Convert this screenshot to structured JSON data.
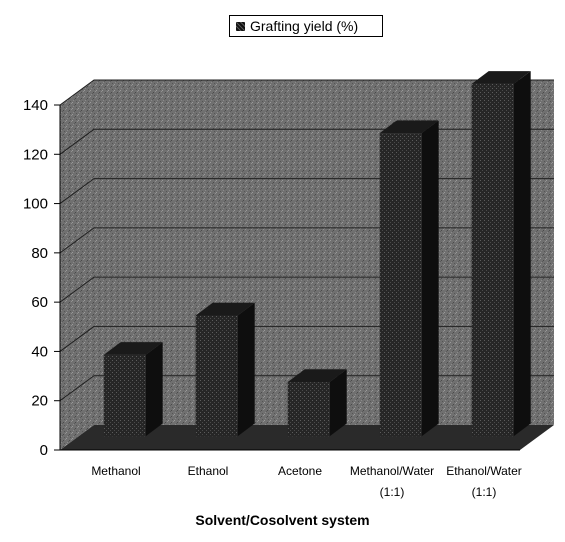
{
  "chart_data": {
    "type": "bar",
    "categories": [
      "Methanol",
      "Ethanol",
      "Acetone",
      "Methanol/Water\n(1:1)",
      "Ethanol/Water\n(1:1)"
    ],
    "series": [
      {
        "name": "Grafting yield (%)",
        "values": [
          33,
          49,
          22,
          123,
          143
        ]
      }
    ],
    "xlabel": "Solvent/Cosolvent system",
    "ylabel": "",
    "ylim": [
      0,
      140
    ],
    "yticks": [
      0,
      20,
      40,
      60,
      80,
      100,
      120,
      140
    ],
    "grid": true,
    "legend_position": "top",
    "projection": "3d",
    "colors": {
      "wall": "#6e6e6e",
      "floor": "#2a2a2a",
      "bar_front": "#3a3a3a",
      "bar_side": "#0e0e0e",
      "bar_top": "#1a1a1a"
    }
  }
}
